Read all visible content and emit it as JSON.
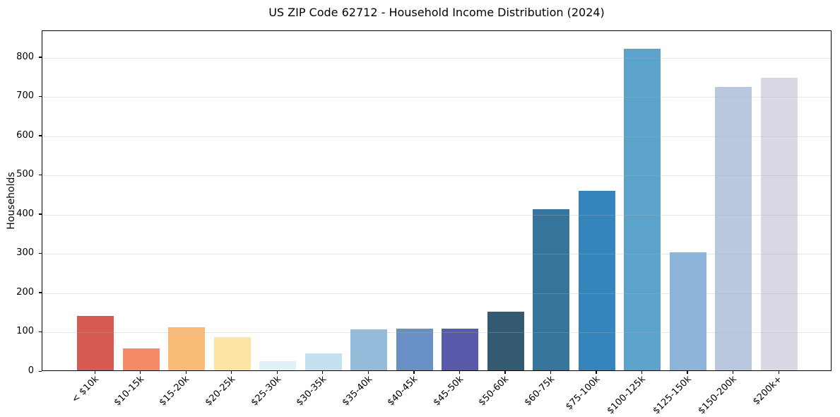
{
  "chart_data": {
    "type": "bar",
    "title": "US ZIP Code 62712 - Household Income Distribution (2024)",
    "xlabel": "",
    "ylabel": "Households",
    "categories": [
      "< $10k",
      "$10-15k",
      "$15-20k",
      "$20-25k",
      "$25-30k",
      "$30-35k",
      "$35-40k",
      "$40-45k",
      "$45-50k",
      "$50-60k",
      "$60-75k",
      "$75-100k",
      "$100-125k",
      "$125-150k",
      "$150-200k",
      "$200k+"
    ],
    "values": [
      138,
      55,
      110,
      85,
      23,
      44,
      104,
      106,
      106,
      150,
      410,
      457,
      820,
      300,
      723,
      746
    ],
    "bar_colors": [
      "#d65a52",
      "#f58a68",
      "#fbbb78",
      "#fce5a2",
      "#e2f1f7",
      "#c3e1ef",
      "#92bcda",
      "#6890c5",
      "#5a5aaa",
      "#335a70",
      "#36749c",
      "#3485bb",
      "#5ca4cb",
      "#8cb5d9",
      "#b9c8de",
      "#d8d9e4"
    ],
    "yticks": [
      0,
      100,
      200,
      300,
      400,
      500,
      600,
      700,
      800
    ],
    "ylim": [
      0,
      868
    ],
    "grid": "horizontal",
    "legend": "none",
    "background_color": "#ffffff",
    "frame_color": "#000000"
  }
}
